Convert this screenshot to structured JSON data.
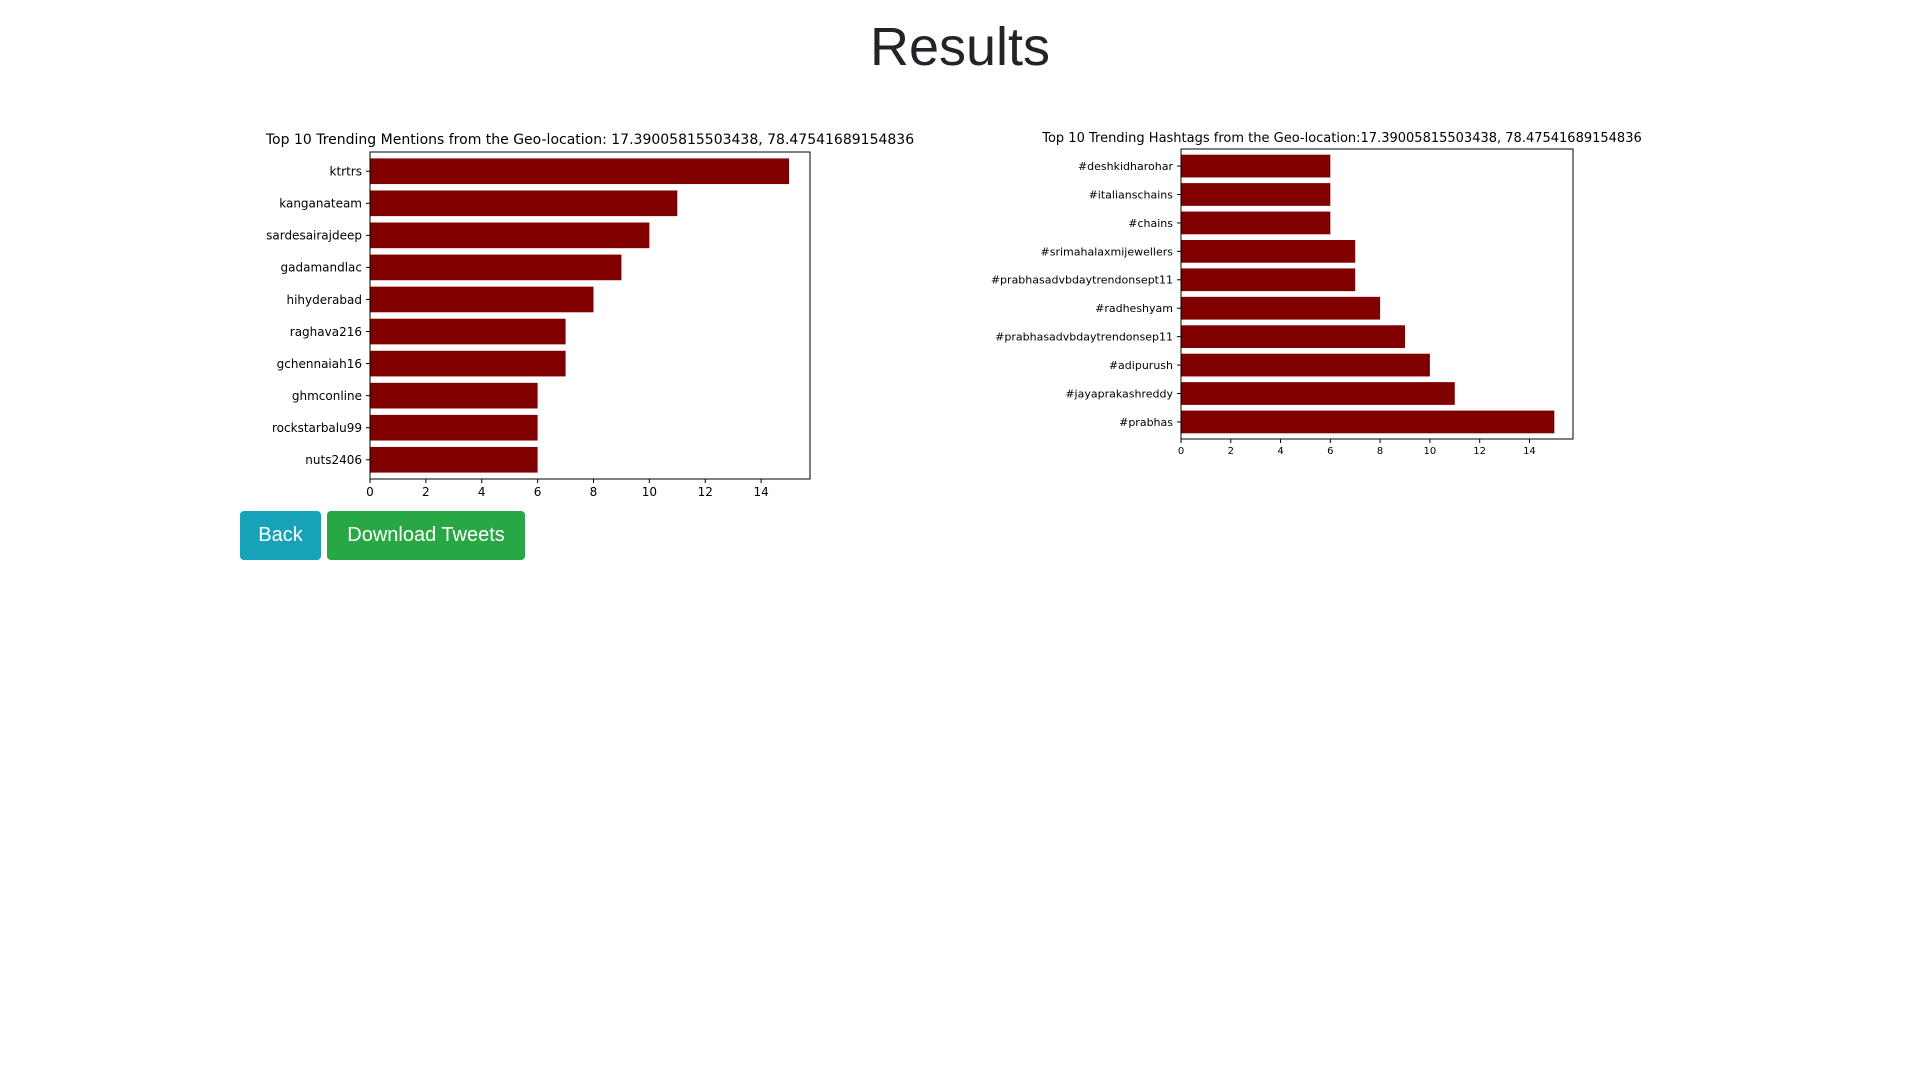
{
  "page": {
    "title": "Results"
  },
  "buttons": {
    "back_label": "Back",
    "download_label": "Download Tweets"
  },
  "colors": {
    "bar": "#800000",
    "back_button": "#17a2b8",
    "download_button": "#28a745"
  },
  "chart_data": [
    {
      "type": "bar",
      "orientation": "horizontal",
      "title": "Top 10 Trending Mentions from the Geo-location: 17.39005815503438, 78.47541689154836",
      "categories": [
        "ktrtrs",
        "kanganateam",
        "sardesairajdeep",
        "gadamandlac",
        "hihyderabad",
        "raghava216",
        "gchennaiah16",
        "ghmconline",
        "rockstarbalu99",
        "nuts2406"
      ],
      "values": [
        15,
        11,
        10,
        9,
        8,
        7,
        7,
        6,
        6,
        6
      ],
      "xlim": [
        0,
        15.75
      ],
      "xticks": [
        0,
        2,
        4,
        6,
        8,
        10,
        12,
        14
      ],
      "xlabel": "",
      "ylabel": ""
    },
    {
      "type": "bar",
      "orientation": "horizontal",
      "title": "Top 10 Trending Hashtags from the Geo-location:17.39005815503438, 78.47541689154836",
      "categories": [
        "#deshkidharohar",
        "#italianschains",
        "#chains",
        "#srimahalaxmijewellers",
        "#prabhasadvbdaytrendonsept11",
        "#radheshyam",
        "#prabhasadvbdaytrendonsep11",
        "#adipurush",
        "#jayaprakashreddy",
        "#prabhas"
      ],
      "values": [
        6,
        6,
        6,
        7,
        7,
        8,
        9,
        10,
        11,
        15
      ],
      "xlim": [
        0,
        15.75
      ],
      "xticks": [
        0,
        2,
        4,
        6,
        8,
        10,
        12,
        14
      ],
      "xlabel": "",
      "ylabel": ""
    }
  ]
}
